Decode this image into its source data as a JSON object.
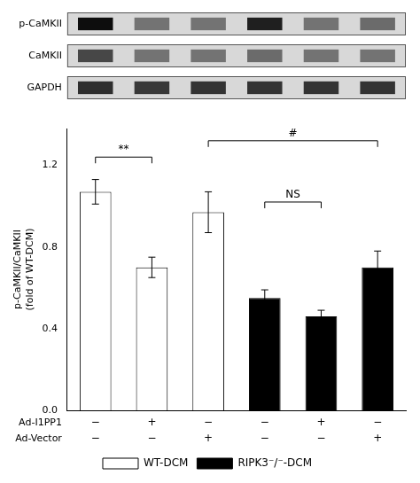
{
  "chart_data": {
    "type": "bar",
    "ylabel": "p-CaMKII/CaMKII\n(fold of WT-DCM)",
    "categories": [
      null,
      null,
      null,
      null,
      null,
      null
    ],
    "series": [
      {
        "name": "WT-DCM",
        "color": "white",
        "values": [
          1.07,
          0.7,
          0.97,
          null,
          null,
          null
        ],
        "errors": [
          0.06,
          0.05,
          0.1,
          null,
          null,
          null
        ]
      },
      {
        "name": "RIPK3⁻/⁻-DCM",
        "color": "black",
        "values": [
          null,
          null,
          null,
          0.55,
          0.46,
          0.7
        ],
        "errors": [
          null,
          null,
          null,
          0.04,
          0.03,
          0.08
        ]
      }
    ],
    "ylim": [
      0.0,
      1.38
    ],
    "yticks": [
      {
        "value": 0.0,
        "label": "0.0"
      },
      0.4,
      0.8,
      1.2
    ],
    "grid": false,
    "legend": "bottom",
    "annotations": [
      {
        "x1": 0,
        "x2": 1,
        "y": 1.24,
        "label": "**"
      },
      {
        "x1": 2,
        "x2": 5,
        "y": 1.32,
        "label": "#"
      },
      {
        "x1": 3,
        "x2": 4,
        "y": 1.02,
        "label": "NS"
      }
    ],
    "rows": [
      {
        "label": "Ad-I1PP1",
        "values": [
          "−",
          "+",
          "−",
          "−",
          "+",
          "−"
        ]
      },
      {
        "label": "Ad-Vector",
        "values": [
          "−",
          "−",
          "+",
          "−",
          "−",
          "+"
        ]
      }
    ],
    "blot": [
      {
        "label": "p-CaMKII",
        "values": [
          0.05,
          0.45,
          0.45,
          0.12,
          0.45,
          0.42
        ]
      },
      {
        "label": "CaMKII",
        "values": [
          0.28,
          0.45,
          0.45,
          0.42,
          0.45,
          0.45
        ]
      },
      {
        "label": "GAPDH",
        "values": [
          0.18,
          0.22,
          0.2,
          0.2,
          0.2,
          0.2
        ]
      }
    ]
  }
}
